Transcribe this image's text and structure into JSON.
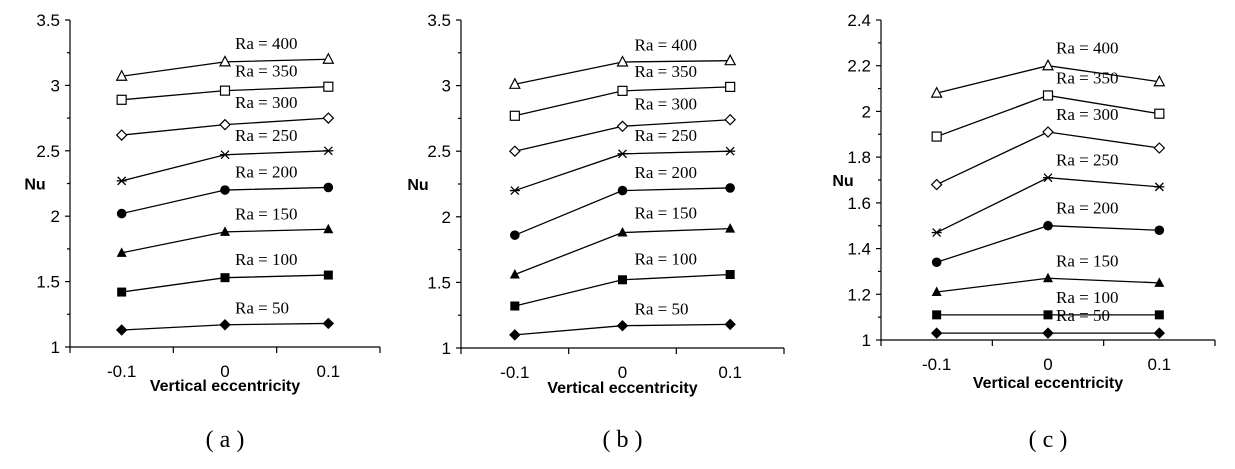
{
  "chart_data": [
    {
      "type": "line",
      "panel_label": "( a )",
      "xlabel": "Vertical eccentricity",
      "ylabel": "Nu",
      "x": [
        -0.1,
        0,
        0.1
      ],
      "xticks": [
        "-0.1",
        "0",
        "0.1"
      ],
      "xlim": [
        -0.15,
        0.15
      ],
      "ylim": [
        1,
        3.5
      ],
      "yticks": [
        "1",
        "1.5",
        "2",
        "2.5",
        "3",
        "3.5"
      ],
      "grid": false,
      "series": [
        {
          "name": "Ra = 50",
          "marker": "diamond-filled",
          "values": [
            1.13,
            1.17,
            1.18
          ]
        },
        {
          "name": "Ra = 100",
          "marker": "square-filled",
          "values": [
            1.42,
            1.53,
            1.55
          ]
        },
        {
          "name": "Ra = 150",
          "marker": "triangle-filled",
          "values": [
            1.72,
            1.88,
            1.9
          ]
        },
        {
          "name": "Ra = 200",
          "marker": "circle-filled",
          "values": [
            2.02,
            2.2,
            2.22
          ]
        },
        {
          "name": "Ra = 250",
          "marker": "star",
          "values": [
            2.27,
            2.47,
            2.5
          ]
        },
        {
          "name": "Ra = 300",
          "marker": "diamond-open",
          "values": [
            2.62,
            2.7,
            2.75
          ]
        },
        {
          "name": "Ra = 350",
          "marker": "square-open",
          "values": [
            2.89,
            2.96,
            2.99
          ]
        },
        {
          "name": "Ra = 400",
          "marker": "triangle-open",
          "values": [
            3.07,
            3.18,
            3.2
          ]
        }
      ]
    },
    {
      "type": "line",
      "panel_label": "( b )",
      "xlabel": "Vertical eccentricity",
      "ylabel": "Nu",
      "x": [
        -0.1,
        0,
        0.1
      ],
      "xticks": [
        "-0.1",
        "0",
        "0.1"
      ],
      "xlim": [
        -0.15,
        0.15
      ],
      "ylim": [
        1,
        3.5
      ],
      "yticks": [
        "1",
        "1.5",
        "2",
        "2.5",
        "3",
        "3.5"
      ],
      "grid": false,
      "series": [
        {
          "name": "Ra = 50",
          "marker": "diamond-filled",
          "values": [
            1.1,
            1.17,
            1.18
          ]
        },
        {
          "name": "Ra = 100",
          "marker": "square-filled",
          "values": [
            1.32,
            1.52,
            1.56
          ]
        },
        {
          "name": "Ra = 150",
          "marker": "triangle-filled",
          "values": [
            1.56,
            1.88,
            1.91
          ]
        },
        {
          "name": "Ra = 200",
          "marker": "circle-filled",
          "values": [
            1.86,
            2.2,
            2.22
          ]
        },
        {
          "name": "Ra = 250",
          "marker": "star",
          "values": [
            2.2,
            2.48,
            2.5
          ]
        },
        {
          "name": "Ra = 300",
          "marker": "diamond-open",
          "values": [
            2.5,
            2.69,
            2.74
          ]
        },
        {
          "name": "Ra = 350",
          "marker": "square-open",
          "values": [
            2.77,
            2.96,
            2.99
          ]
        },
        {
          "name": "Ra = 400",
          "marker": "triangle-open",
          "values": [
            3.01,
            3.18,
            3.19
          ]
        }
      ]
    },
    {
      "type": "line",
      "panel_label": "( c )",
      "xlabel": "Vertical eccentricity",
      "ylabel": "Nu",
      "x": [
        -0.1,
        0,
        0.1
      ],
      "xticks": [
        "-0.1",
        "0",
        "0.1"
      ],
      "xlim": [
        -0.15,
        0.15
      ],
      "ylim": [
        1,
        2.4
      ],
      "yticks": [
        "1",
        "1.2",
        "1.4",
        "1.6",
        "1.8",
        "2",
        "2.2",
        "2.4"
      ],
      "grid": false,
      "series": [
        {
          "name": "Ra = 50",
          "marker": "diamond-filled",
          "values": [
            1.03,
            1.03,
            1.03
          ]
        },
        {
          "name": "Ra = 100",
          "marker": "square-filled",
          "values": [
            1.11,
            1.11,
            1.11
          ]
        },
        {
          "name": "Ra = 150",
          "marker": "triangle-filled",
          "values": [
            1.21,
            1.27,
            1.25
          ]
        },
        {
          "name": "Ra = 200",
          "marker": "circle-filled",
          "values": [
            1.34,
            1.5,
            1.48
          ]
        },
        {
          "name": "Ra = 250",
          "marker": "star",
          "values": [
            1.47,
            1.71,
            1.67
          ]
        },
        {
          "name": "Ra = 300",
          "marker": "diamond-open",
          "values": [
            1.68,
            1.91,
            1.84
          ]
        },
        {
          "name": "Ra = 350",
          "marker": "square-open",
          "values": [
            1.89,
            2.07,
            1.99
          ]
        },
        {
          "name": "Ra = 400",
          "marker": "triangle-open",
          "values": [
            2.08,
            2.2,
            2.13
          ]
        }
      ]
    }
  ]
}
